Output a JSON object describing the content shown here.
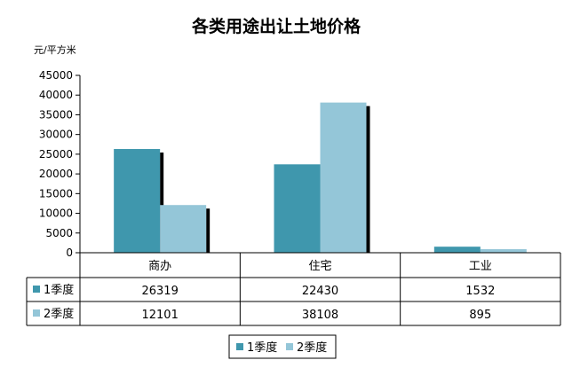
{
  "chart_data": {
    "type": "bar",
    "title": "各类用途出让土地价格",
    "ylabel": "元/平方米",
    "xlabel": "",
    "ylim": [
      0,
      45000
    ],
    "yticks": [
      0,
      5000,
      10000,
      15000,
      20000,
      25000,
      30000,
      35000,
      40000,
      45000
    ],
    "categories": [
      "商办",
      "住宅",
      "工业"
    ],
    "series": [
      {
        "name": "1季度",
        "values": [
          26319,
          22430,
          1532
        ],
        "color": "#3f97ad"
      },
      {
        "name": "2季度",
        "values": [
          12101,
          38108,
          895
        ],
        "color": "#94c6d8"
      }
    ],
    "data_table": true,
    "legend": "bottom",
    "grid": false
  }
}
